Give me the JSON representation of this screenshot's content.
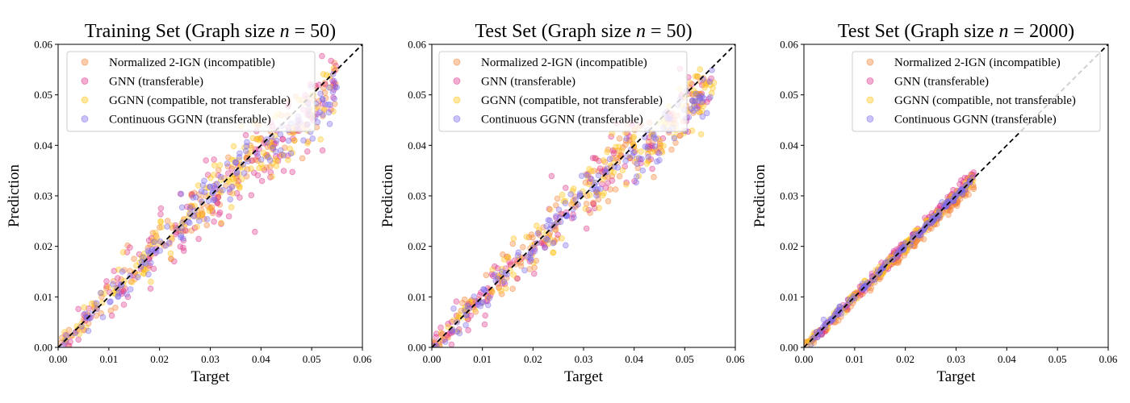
{
  "figure": {
    "panels": [
      {
        "title_main": "Training Set (Graph size ",
        "title_var": "n",
        "title_rest": " = 50)"
      },
      {
        "title_main": "Test Set (Graph size ",
        "title_var": "n",
        "title_rest": " = 50)"
      },
      {
        "title_main": "Test Set (Graph size ",
        "title_var": "n",
        "title_rest": " = 2000)"
      }
    ]
  },
  "chart_data": [
    {
      "type": "scatter",
      "title": "Training Set (Graph size n = 50)",
      "xlabel": "Target",
      "ylabel": "Prediction",
      "xlim": [
        0,
        0.06
      ],
      "ylim": [
        0,
        0.06
      ],
      "xticks": [
        "0.00",
        "0.01",
        "0.02",
        "0.03",
        "0.04",
        "0.05",
        "0.06"
      ],
      "yticks": [
        "0.00",
        "0.01",
        "0.02",
        "0.03",
        "0.04",
        "0.05",
        "0.06"
      ],
      "reference_line": "y = x (black dashed)",
      "legend_position": "upper-left",
      "target_range": [
        0,
        0.055
      ],
      "series": [
        {
          "name": "Normalized 2-IGN (incompatible)",
          "color": "#f58231",
          "spread": 0.0028,
          "bias": 0.0
        },
        {
          "name": "GNN (transferable)",
          "color": "#e0338c",
          "spread": 0.0038,
          "bias": 0.0
        },
        {
          "name": "GGNN (compatible, not transferable)",
          "color": "#ffc20e",
          "spread": 0.003,
          "bias": 0.0
        },
        {
          "name": "Continuous GGNN (transferable)",
          "color": "#7b68ee",
          "spread": 0.0022,
          "bias": 0.0
        }
      ]
    },
    {
      "type": "scatter",
      "title": "Test Set (Graph size n = 50)",
      "xlabel": "Target",
      "ylabel": "Prediction",
      "xlim": [
        0,
        0.06
      ],
      "ylim": [
        0,
        0.06
      ],
      "xticks": [
        "0.00",
        "0.01",
        "0.02",
        "0.03",
        "0.04",
        "0.05",
        "0.06"
      ],
      "yticks": [
        "0.00",
        "0.01",
        "0.02",
        "0.03",
        "0.04",
        "0.05",
        "0.06"
      ],
      "reference_line": "y = x (black dashed)",
      "legend_position": "upper-left",
      "target_range": [
        0,
        0.056
      ],
      "series": [
        {
          "name": "Normalized 2-IGN (incompatible)",
          "color": "#f58231",
          "spread": 0.0026,
          "bias": 0.0
        },
        {
          "name": "GNN (transferable)",
          "color": "#e0338c",
          "spread": 0.0034,
          "bias": 0.0
        },
        {
          "name": "GGNN (compatible, not transferable)",
          "color": "#ffc20e",
          "spread": 0.0028,
          "bias": 0.0
        },
        {
          "name": "Continuous GGNN (transferable)",
          "color": "#7b68ee",
          "spread": 0.002,
          "bias": 0.0
        }
      ]
    },
    {
      "type": "scatter",
      "title": "Test Set (Graph size n = 2000)",
      "xlabel": "Target",
      "ylabel": "Prediction",
      "xlim": [
        0,
        0.06
      ],
      "ylim": [
        0,
        0.06
      ],
      "xticks": [
        "0.00",
        "0.01",
        "0.02",
        "0.03",
        "0.04",
        "0.05",
        "0.06"
      ],
      "yticks": [
        "0.00",
        "0.01",
        "0.02",
        "0.03",
        "0.04",
        "0.05",
        "0.06"
      ],
      "reference_line": "y = x (black dashed)",
      "legend_position": "upper-right",
      "target_range": [
        0,
        0.0335
      ],
      "series": [
        {
          "name": "Normalized 2-IGN (incompatible)",
          "color": "#f58231",
          "spread": 0.0006,
          "bias": -0.0012
        },
        {
          "name": "GNN (transferable)",
          "color": "#e0338c",
          "spread": 0.0006,
          "bias": 0.0006
        },
        {
          "name": "GGNN (compatible, not transferable)",
          "color": "#ffc20e",
          "spread": 0.0005,
          "bias": 0.0002
        },
        {
          "name": "Continuous GGNN (transferable)",
          "color": "#7b68ee",
          "spread": 0.0004,
          "bias": 0.0
        }
      ]
    }
  ]
}
